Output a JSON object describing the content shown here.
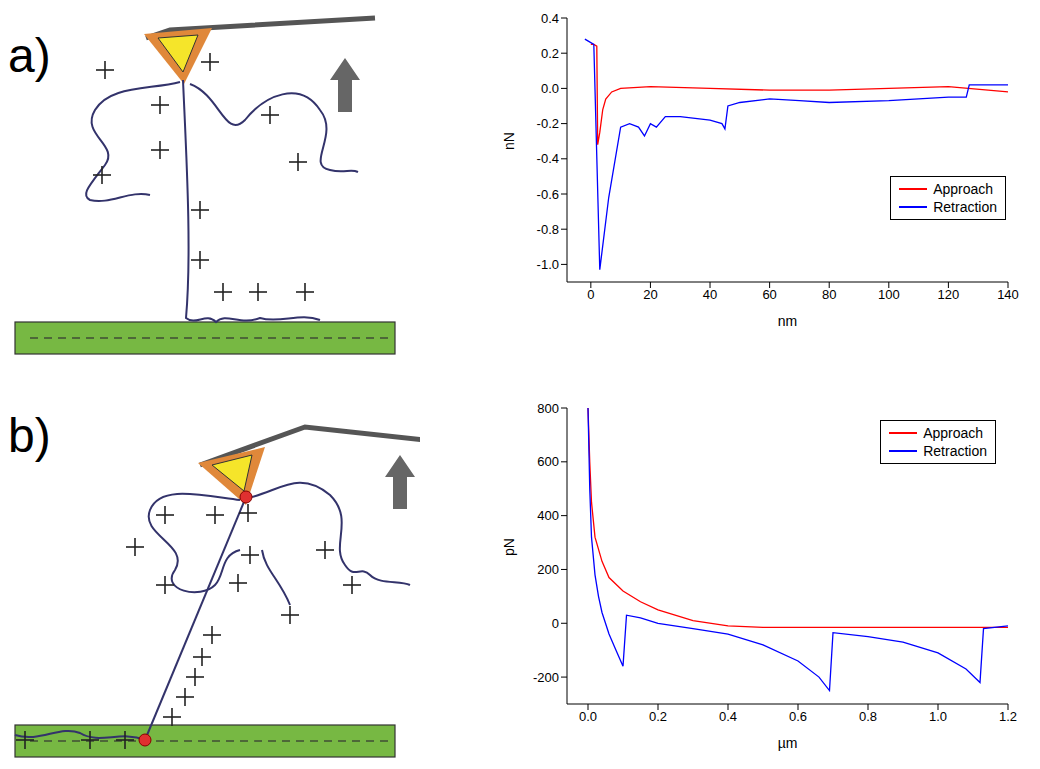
{
  "panel_labels": [
    "a)",
    "b)"
  ],
  "chart_data": [
    {
      "type": "line",
      "x_label": "nm",
      "y_label": "nN",
      "xlim": [
        -8,
        140
      ],
      "ylim": [
        -1.1,
        0.4
      ],
      "xticks": [
        0,
        20,
        40,
        60,
        80,
        100,
        120,
        140
      ],
      "yticks": [
        0.4,
        0.2,
        {
          "value": 0,
          "label": "0.0"
        },
        -0.2,
        -0.4,
        -0.6,
        -0.8,
        {
          "value": -1,
          "label": "-1.0"
        }
      ],
      "legend": "right",
      "series": [
        {
          "name": "Approach",
          "color": "#ff0000",
          "x": [
            0,
            1,
            2,
            2.3,
            3,
            4,
            5,
            7,
            10,
            20,
            40,
            60,
            80,
            100,
            120,
            140
          ],
          "values": [
            0.25,
            0.25,
            0.24,
            -0.32,
            -0.25,
            -0.12,
            -0.06,
            -0.02,
            0,
            0.01,
            0,
            -0.01,
            -0.01,
            0,
            0.01,
            -0.02
          ]
        },
        {
          "name": "Retraction",
          "color": "#0000ff",
          "x": [
            -2,
            -1,
            1,
            3,
            6,
            10,
            13,
            16,
            18,
            20,
            22,
            25,
            30,
            40,
            44,
            45,
            46,
            50,
            60,
            70,
            80,
            100,
            120,
            126,
            127,
            130,
            140
          ],
          "values": [
            0.28,
            0.27,
            0.25,
            -1.03,
            -0.62,
            -0.22,
            -0.2,
            -0.22,
            -0.27,
            -0.2,
            -0.22,
            -0.16,
            -0.16,
            -0.18,
            -0.2,
            -0.23,
            -0.1,
            -0.08,
            -0.06,
            -0.07,
            -0.08,
            -0.07,
            -0.05,
            -0.05,
            0.02,
            0.02,
            0.02
          ]
        }
      ]
    },
    {
      "type": "line",
      "x_label": "µm",
      "y_label": "pN",
      "xlim": [
        -0.06,
        1.2
      ],
      "ylim": [
        -300,
        800
      ],
      "xticks": [
        {
          "value": 0,
          "label": "0.0"
        },
        0.2,
        0.4,
        0.6,
        0.8,
        {
          "value": 1,
          "label": "1.0"
        },
        1.2
      ],
      "yticks": [
        800,
        600,
        400,
        200,
        0,
        -200
      ],
      "legend": "top-right",
      "series": [
        {
          "name": "Approach",
          "color": "#ff0000",
          "x": [
            0,
            0.005,
            0.01,
            0.02,
            0.04,
            0.06,
            0.1,
            0.15,
            0.2,
            0.3,
            0.4,
            0.5,
            0.8,
            1.2
          ],
          "values": [
            800,
            600,
            450,
            320,
            230,
            170,
            120,
            80,
            50,
            10,
            -10,
            -15,
            -15,
            -15
          ]
        },
        {
          "name": "Retraction",
          "color": "#0000ff",
          "x": [
            0,
            0.005,
            0.01,
            0.02,
            0.03,
            0.04,
            0.06,
            0.08,
            0.1,
            0.11,
            0.15,
            0.2,
            0.3,
            0.4,
            0.5,
            0.6,
            0.66,
            0.69,
            0.7,
            0.8,
            0.9,
            1.0,
            1.08,
            1.12,
            1.13,
            1.2
          ],
          "values": [
            800,
            500,
            320,
            180,
            100,
            40,
            -40,
            -100,
            -160,
            30,
            20,
            0,
            -20,
            -40,
            -80,
            -140,
            -200,
            -250,
            -35,
            -50,
            -70,
            -110,
            -170,
            -220,
            -20,
            -10
          ]
        }
      ]
    }
  ]
}
